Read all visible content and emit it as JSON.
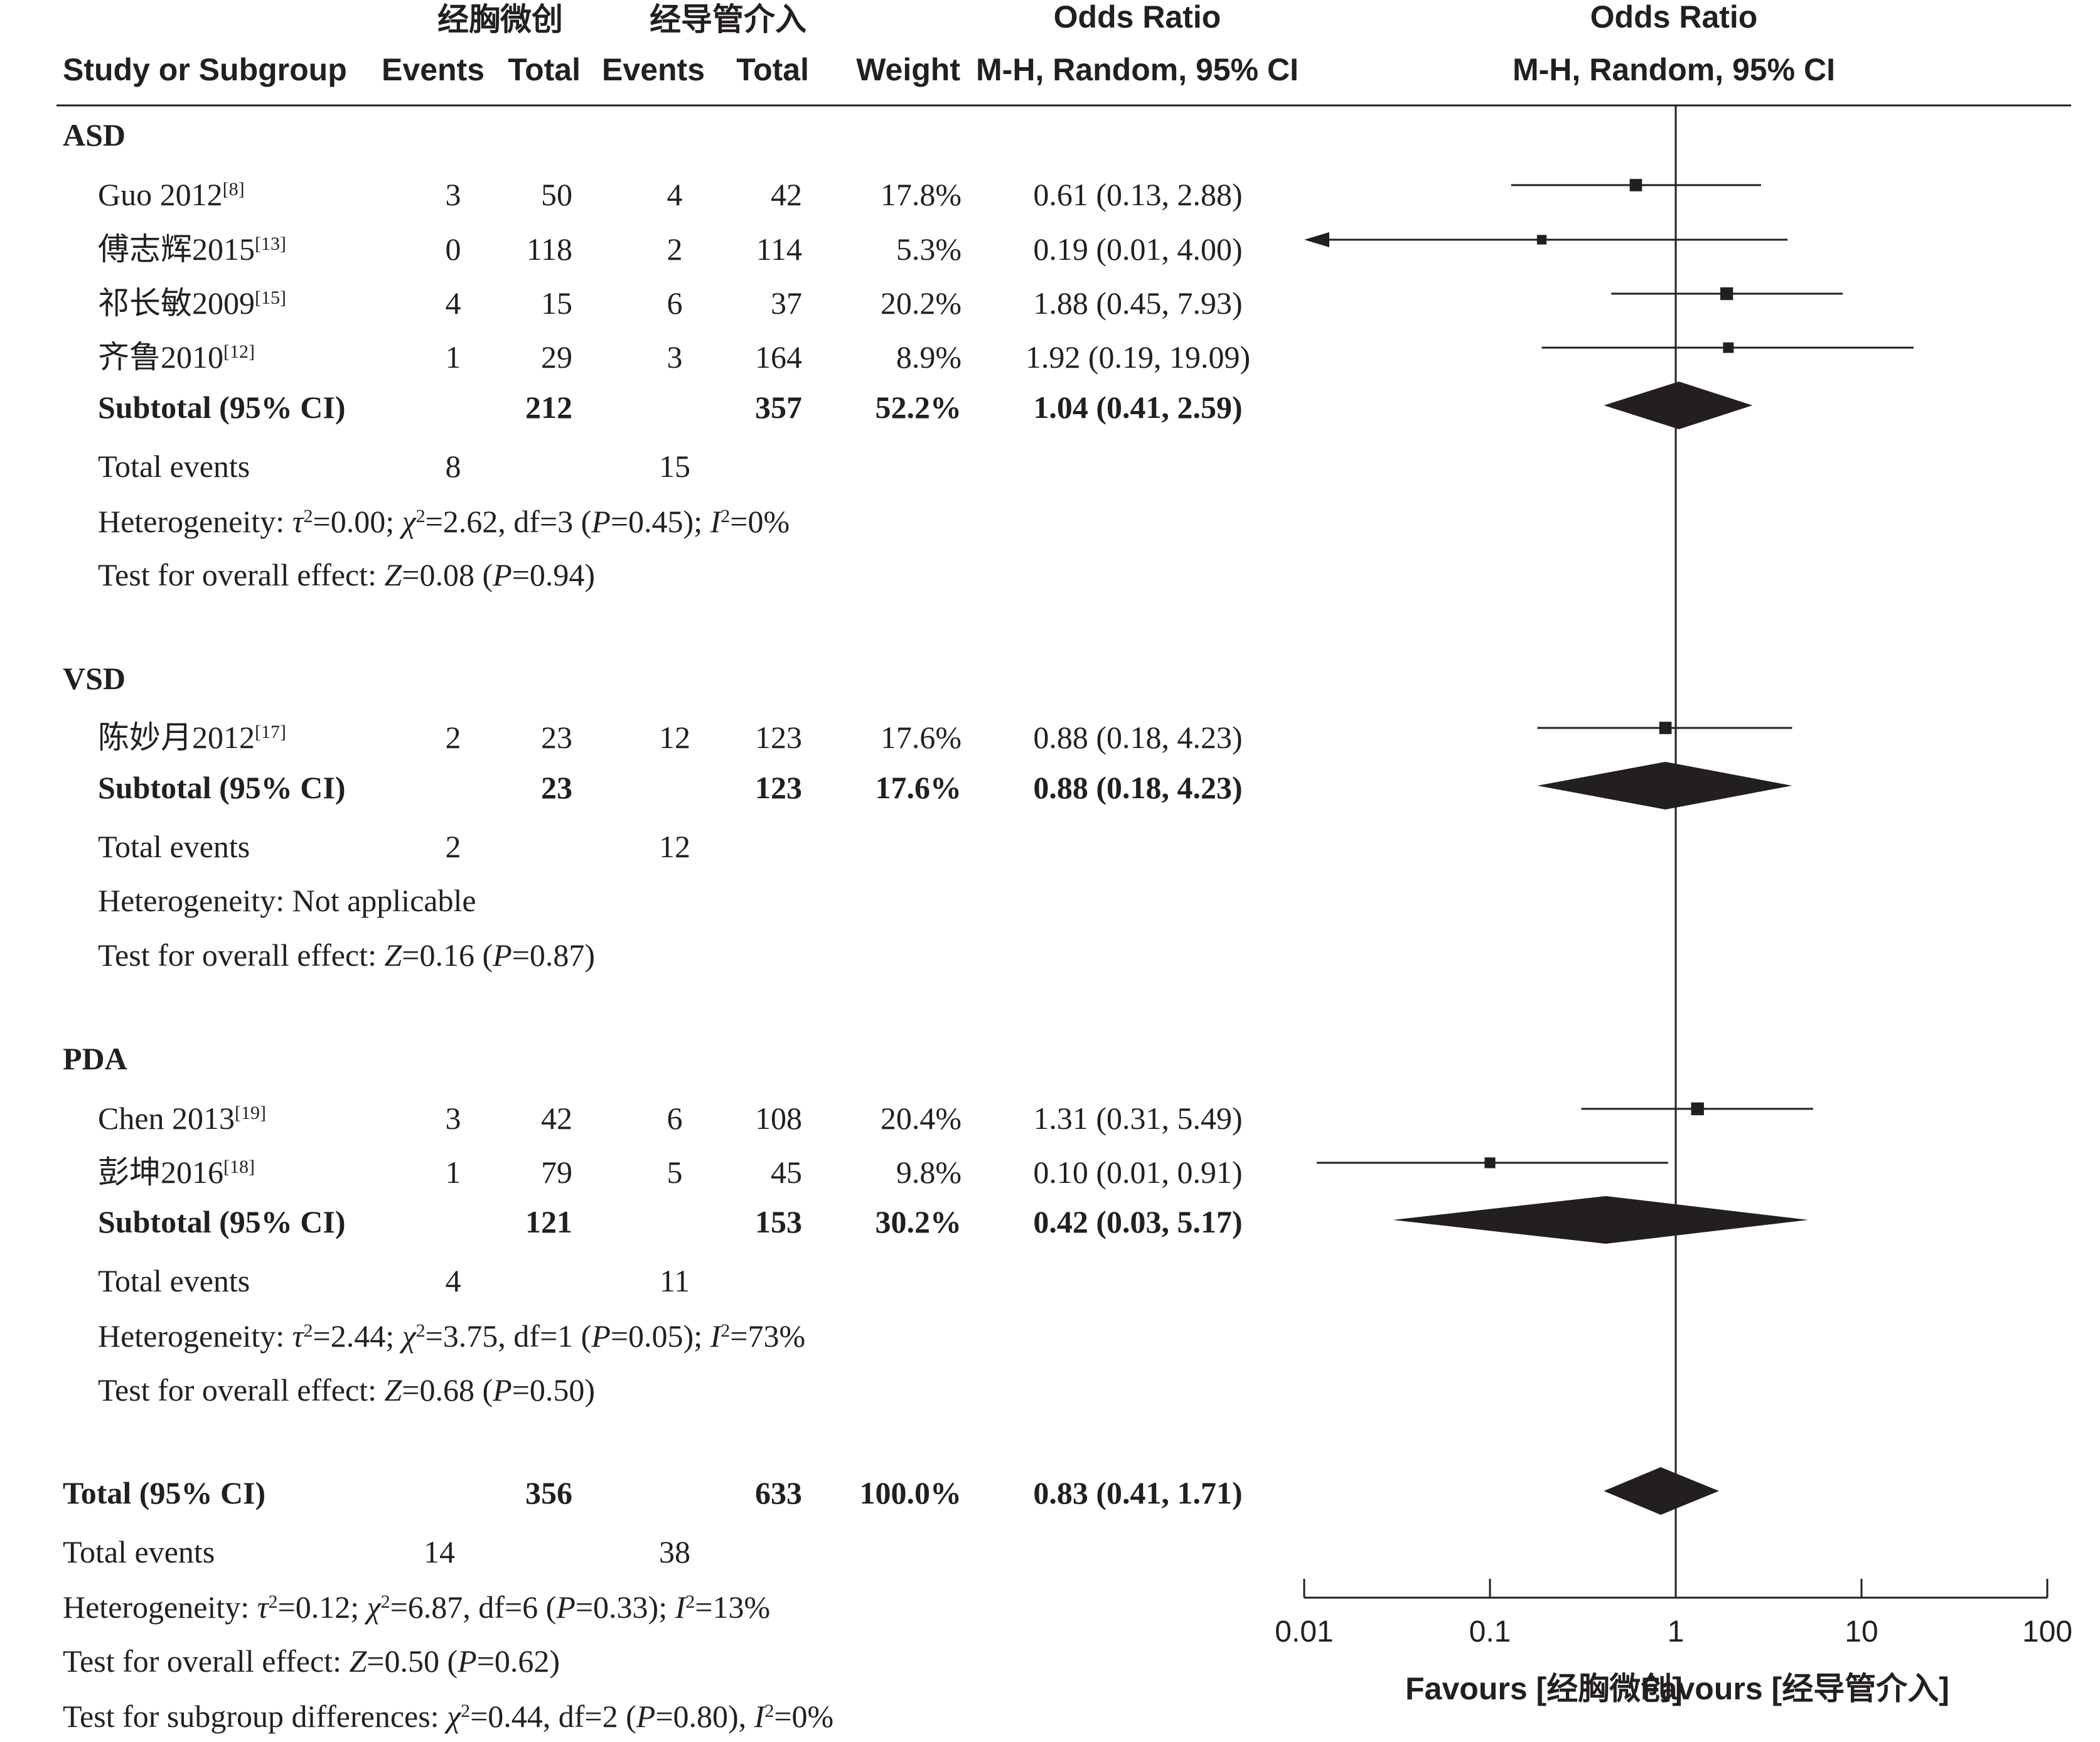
{
  "chart_data": {
    "type": "forest",
    "title": "",
    "headers": {
      "group1": "经胸微创",
      "group2": "经导管介入",
      "study": "Study or Subgroup",
      "events": "Events",
      "total": "Total",
      "weight": "Weight",
      "or_title": "Odds Ratio",
      "or_method": "M-H, Random, 95% CI",
      "plot_title": "Odds Ratio",
      "plot_method": "M-H, Random, 95% CI"
    },
    "x_axis": {
      "scale": "log",
      "ticks": [
        0.01,
        0.1,
        1,
        10,
        100
      ],
      "tick_labels": [
        "0.01",
        "0.1",
        "1",
        "10",
        "100"
      ],
      "xlim": [
        0.01,
        100
      ],
      "null_line": 1,
      "favours_left": "Favours [经胸微创]",
      "favours_right": "Favours [经导管介入]"
    },
    "subgroups": [
      {
        "name": "ASD",
        "studies": [
          {
            "study": "Guo 2012",
            "ref": "[8]",
            "e1": "3",
            "n1": "50",
            "e2": "4",
            "n2": "42",
            "weight": "17.8%",
            "or_text": "0.61 (0.13, 2.88)",
            "or": 0.61,
            "lo": 0.13,
            "hi": 2.88,
            "w": 17.8
          },
          {
            "study": "傅志辉2015",
            "ref": "[13]",
            "e1": "0",
            "n1": "118",
            "e2": "2",
            "n2": "114",
            "weight": "5.3%",
            "or_text": "0.19 (0.01, 4.00)",
            "or": 0.19,
            "lo": 0.01,
            "hi": 4.0,
            "w": 5.3
          },
          {
            "study": "祁长敏2009",
            "ref": "[15]",
            "e1": "4",
            "n1": "15",
            "e2": "6",
            "n2": "37",
            "weight": "20.2%",
            "or_text": "1.88 (0.45, 7.93)",
            "or": 1.88,
            "lo": 0.45,
            "hi": 7.93,
            "w": 20.2
          },
          {
            "study": "齐鲁2010",
            "ref": "[12]",
            "e1": "1",
            "n1": "29",
            "e2": "3",
            "n2": "164",
            "weight": "8.9%",
            "or_text": "1.92 (0.19, 19.09)",
            "or": 1.92,
            "lo": 0.19,
            "hi": 19.09,
            "w": 8.9
          }
        ],
        "subtotal": {
          "label": "Subtotal (95% CI)",
          "n1": "212",
          "n2": "357",
          "weight": "52.2%",
          "or_text": "1.04 (0.41, 2.59)",
          "or": 1.04,
          "lo": 0.41,
          "hi": 2.59
        },
        "events": {
          "label": "Total events",
          "e1": "8",
          "e2": "15"
        },
        "heterogeneity": [
          {
            "t": "Heterogeneity: "
          },
          {
            "t": "τ",
            "i": true
          },
          {
            "t": "2",
            "sup": true
          },
          {
            "t": "=0.00; "
          },
          {
            "t": "χ",
            "i": true
          },
          {
            "t": "2",
            "sup": true
          },
          {
            "t": "=2.62, df=3 ("
          },
          {
            "t": "P",
            "i": true
          },
          {
            "t": "=0.45); "
          },
          {
            "t": "I",
            "i": true
          },
          {
            "t": "2",
            "sup": true
          },
          {
            "t": "=0%"
          }
        ],
        "overall": [
          {
            "t": "Test for overall effect: "
          },
          {
            "t": "Z",
            "i": true
          },
          {
            "t": "=0.08 ("
          },
          {
            "t": "P",
            "i": true
          },
          {
            "t": "=0.94)"
          }
        ]
      },
      {
        "name": "VSD",
        "studies": [
          {
            "study": "陈妙月2012",
            "ref": "[17]",
            "e1": "2",
            "n1": "23",
            "e2": "12",
            "n2": "123",
            "weight": "17.6%",
            "or_text": "0.88 (0.18, 4.23)",
            "or": 0.88,
            "lo": 0.18,
            "hi": 4.23,
            "w": 17.6
          }
        ],
        "subtotal": {
          "label": "Subtotal (95% CI)",
          "n1": "23",
          "n2": "123",
          "weight": "17.6%",
          "or_text": "0.88 (0.18, 4.23)",
          "or": 0.88,
          "lo": 0.18,
          "hi": 4.23
        },
        "events": {
          "label": "Total events",
          "e1": "2",
          "e2": "12"
        },
        "heterogeneity": [
          {
            "t": "Heterogeneity: Not applicable"
          }
        ],
        "overall": [
          {
            "t": "Test for overall effect: "
          },
          {
            "t": "Z",
            "i": true
          },
          {
            "t": "=0.16 ("
          },
          {
            "t": "P",
            "i": true
          },
          {
            "t": "=0.87)"
          }
        ]
      },
      {
        "name": "PDA",
        "studies": [
          {
            "study": "Chen 2013",
            "ref": "[19]",
            "e1": "3",
            "n1": "42",
            "e2": "6",
            "n2": "108",
            "weight": "20.4%",
            "or_text": "1.31 (0.31, 5.49)",
            "or": 1.31,
            "lo": 0.31,
            "hi": 5.49,
            "w": 20.4
          },
          {
            "study": "彭坤2016",
            "ref": "[18]",
            "e1": "1",
            "n1": "79",
            "e2": "5",
            "n2": "45",
            "weight": "9.8%",
            "or_text": "0.10 (0.01, 0.91)",
            "or": 0.1,
            "lo": 0.01,
            "hi": 0.91,
            "w": 9.8
          }
        ],
        "subtotal": {
          "label": "Subtotal (95% CI)",
          "n1": "121",
          "n2": "153",
          "weight": "30.2%",
          "or_text": "0.42 (0.03, 5.17)",
          "or": 0.42,
          "lo": 0.03,
          "hi": 5.17
        },
        "events": {
          "label": "Total events",
          "e1": "4",
          "e2": "11"
        },
        "heterogeneity": [
          {
            "t": "Heterogeneity: "
          },
          {
            "t": "τ",
            "i": true
          },
          {
            "t": "2",
            "sup": true
          },
          {
            "t": "=2.44; "
          },
          {
            "t": "χ",
            "i": true
          },
          {
            "t": "2",
            "sup": true
          },
          {
            "t": "=3.75, df=1 ("
          },
          {
            "t": "P",
            "i": true
          },
          {
            "t": "=0.05); "
          },
          {
            "t": "I",
            "i": true
          },
          {
            "t": "2",
            "sup": true
          },
          {
            "t": "=73%"
          }
        ],
        "overall": [
          {
            "t": "Test for overall effect: "
          },
          {
            "t": "Z",
            "i": true
          },
          {
            "t": "=0.68 ("
          },
          {
            "t": "P",
            "i": true
          },
          {
            "t": "=0.50)"
          }
        ]
      }
    ],
    "total": {
      "label": "Total (95% CI)",
      "n1": "356",
      "n2": "633",
      "weight": "100.0%",
      "or_text": "0.83 (0.41, 1.71)",
      "or": 0.83,
      "lo": 0.41,
      "hi": 1.71
    },
    "total_events": {
      "label": "Total events",
      "e1": "14",
      "e2": "38"
    },
    "total_heterogeneity": [
      {
        "t": "Heterogeneity: "
      },
      {
        "t": "τ",
        "i": true
      },
      {
        "t": "2",
        "sup": true
      },
      {
        "t": "=0.12; "
      },
      {
        "t": "χ",
        "i": true
      },
      {
        "t": "2",
        "sup": true
      },
      {
        "t": "=6.87, df=6 ("
      },
      {
        "t": "P",
        "i": true
      },
      {
        "t": "=0.33); "
      },
      {
        "t": "I",
        "i": true
      },
      {
        "t": "2",
        "sup": true
      },
      {
        "t": "=13%"
      }
    ],
    "total_overall": [
      {
        "t": "Test for overall effect: "
      },
      {
        "t": "Z",
        "i": true
      },
      {
        "t": "=0.50 ("
      },
      {
        "t": "P",
        "i": true
      },
      {
        "t": "=0.62)"
      }
    ],
    "subgroup_differences": [
      {
        "t": "Test for subgroup differences: "
      },
      {
        "t": "χ",
        "i": true
      },
      {
        "t": "2",
        "sup": true
      },
      {
        "t": "=0.44, df=2 ("
      },
      {
        "t": "P",
        "i": true
      },
      {
        "t": "=0.80), "
      },
      {
        "t": "I",
        "i": true
      },
      {
        "t": "2",
        "sup": true
      },
      {
        "t": "=0%"
      }
    ]
  }
}
